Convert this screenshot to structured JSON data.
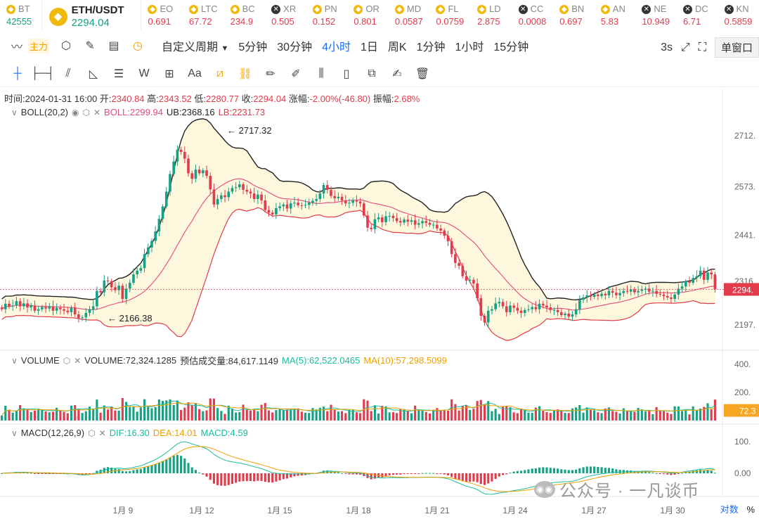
{
  "ticker_left": [
    {
      "sym": "BT",
      "price": "42555",
      "dir": "up",
      "icon": "binance-icon"
    }
  ],
  "main_pair": {
    "name": "ETH/USDT",
    "price": "2294.04"
  },
  "ticker_right": [
    {
      "sym": "EO",
      "price": "0.691",
      "icon": "binance-icon"
    },
    {
      "sym": "LTC",
      "price": "67.72",
      "icon": "binance-icon"
    },
    {
      "sym": "BC",
      "price": "234.9",
      "icon": "binance-icon"
    },
    {
      "sym": "XR",
      "price": "0.505",
      "icon": "x-icon"
    },
    {
      "sym": "PN",
      "price": "0.152",
      "icon": "binance-icon"
    },
    {
      "sym": "OR",
      "price": "0.801",
      "icon": "binance-icon"
    },
    {
      "sym": "MD",
      "price": "0.0587",
      "icon": "binance-icon"
    },
    {
      "sym": "FL",
      "price": "0.0759",
      "icon": "binance-icon"
    },
    {
      "sym": "LD",
      "price": "2.875",
      "icon": "binance-icon"
    },
    {
      "sym": "CC",
      "price": "0.0008",
      "icon": "x-icon"
    },
    {
      "sym": "BN",
      "price": "0.697",
      "icon": "binance-icon"
    },
    {
      "sym": "AN",
      "price": "5.83",
      "icon": "binance-icon"
    },
    {
      "sym": "NE",
      "price": "10.949",
      "icon": "x-icon"
    },
    {
      "sym": "DC",
      "price": "6.71",
      "icon": "x-icon"
    },
    {
      "sym": "KN",
      "price": "0.5859",
      "icon": "x-icon"
    }
  ],
  "toolbar": {
    "main_label": "主力",
    "custom_period": "自定义周期",
    "intervals": [
      "5分钟",
      "30分钟",
      "4小时",
      "1日",
      "周K",
      "1分钟",
      "1小时",
      "15分钟"
    ],
    "active_interval": "4小时",
    "refresh": "3s",
    "window_mode": "单窗口"
  },
  "candle_info": {
    "time_label": "时间:",
    "time": "2024-01-31 16:00",
    "open_label": "开:",
    "open": "2340.84",
    "high_label": "高:",
    "high": "2343.52",
    "low_label": "低:",
    "low": "2280.77",
    "close_label": "收:",
    "close": "2294.04",
    "change_label": "涨幅:",
    "change": "-2.00%(-46.80)",
    "amp_label": "振幅:",
    "amp": "2.68%"
  },
  "boll": {
    "name": "BOLL(20,2)",
    "mid": "BOLL:2299.94",
    "ub": "UB:2368.16",
    "lb": "LB:2231.73"
  },
  "volume": {
    "name": "VOLUME",
    "value": "VOLUME:72,324.1285",
    "est": "预估成交量:84,617.1149",
    "ma5": "MA(5):62,522.0465",
    "ma10": "MA(10):57,298.5099"
  },
  "macd": {
    "name": "MACD(12,26,9)",
    "dif": "DIF:16.30",
    "dea": "DEA:14.01",
    "macd": "MACD:4.59"
  },
  "price_axis": [
    "2712.",
    "2573.",
    "2441.",
    "2316.",
    "2197."
  ],
  "current_price_tag": "2294.",
  "volume_axis": [
    "400.",
    "200.",
    "72.3"
  ],
  "macd_axis": [
    "100.",
    "0.00"
  ],
  "annotations": {
    "high": "← 2717.32",
    "low": "← 2166.38"
  },
  "date_axis": [
    "1月 9",
    "1月 12",
    "1月 15",
    "1月 18",
    "1月 21",
    "1月 24",
    "1月 27",
    "1月 30"
  ],
  "footer": {
    "log": "对数",
    "pct": "%"
  },
  "watermark": "公众号 · 一凡谈币",
  "colors": {
    "up": "#16a085",
    "down": "#e23b4c",
    "boll_mid": "#e44b7e",
    "band": "#fdf8dd",
    "accent": "#1a6cff"
  },
  "chart_data": {
    "type": "candlestick",
    "title": "ETH/USDT 4小时",
    "price_range": [
      2140,
      2760
    ],
    "closes": [
      2240,
      2255,
      2248,
      2250,
      2262,
      2248,
      2256,
      2245,
      2250,
      2236,
      2240,
      2246,
      2242,
      2248,
      2236,
      2244,
      2240,
      2236,
      2232,
      2244,
      2226,
      2216,
      2218,
      2230,
      2240,
      2248,
      2290,
      2286,
      2318,
      2316,
      2300,
      2292,
      2304,
      2268,
      2296,
      2312,
      2335,
      2345,
      2352,
      2390,
      2408,
      2426,
      2452,
      2486,
      2520,
      2560,
      2608,
      2642,
      2674,
      2668,
      2650,
      2610,
      2595,
      2620,
      2610,
      2618,
      2603,
      2566,
      2525,
      2540,
      2550,
      2545,
      2560,
      2570,
      2572,
      2580,
      2565,
      2560,
      2555,
      2540,
      2552,
      2536,
      2510,
      2503,
      2498,
      2515,
      2520,
      2525,
      2514,
      2528,
      2530,
      2523,
      2522,
      2524,
      2530,
      2535,
      2540,
      2555,
      2578,
      2565,
      2548,
      2542,
      2546,
      2536,
      2528,
      2530,
      2536,
      2533,
      2528,
      2495,
      2462,
      2458,
      2485,
      2490,
      2477,
      2493,
      2494,
      2488,
      2480,
      2476,
      2484,
      2478,
      2482,
      2470,
      2474,
      2480,
      2475,
      2470,
      2470,
      2460,
      2454,
      2440,
      2425,
      2390,
      2366,
      2358,
      2330,
      2318,
      2320,
      2310,
      2270,
      2222,
      2204,
      2236,
      2240,
      2256,
      2260,
      2248,
      2232,
      2250,
      2244,
      2236,
      2230,
      2238,
      2240,
      2246,
      2240,
      2255,
      2250,
      2245,
      2238,
      2238,
      2232,
      2224,
      2228,
      2220,
      2226,
      2240,
      2266,
      2272,
      2278,
      2274,
      2280,
      2276,
      2282,
      2278,
      2290,
      2285,
      2278,
      2284,
      2290,
      2288,
      2294,
      2286,
      2290,
      2294,
      2296,
      2288,
      2290,
      2282,
      2280,
      2276,
      2272,
      2268,
      2280,
      2296,
      2302,
      2316,
      2312,
      2325,
      2330,
      2345,
      2320,
      2340,
      2335,
      2294
    ],
    "highs_annotated": {
      "high": 2717.32,
      "low": 2166.38
    },
    "last": {
      "open": 2340.84,
      "high": 2343.52,
      "low": 2280.77,
      "close": 2294.04,
      "change_pct": -2.0
    },
    "boll": {
      "mid": 2299.94,
      "ub": 2368.16,
      "lb": 2231.73
    },
    "volume_last": 72324.1285,
    "macd": {
      "dif": 16.3,
      "dea": 14.01,
      "macd": 4.59
    },
    "x_labels": [
      "1月 9",
      "1月 12",
      "1月 15",
      "1月 18",
      "1月 21",
      "1月 24",
      "1月 27",
      "1月 30"
    ]
  }
}
